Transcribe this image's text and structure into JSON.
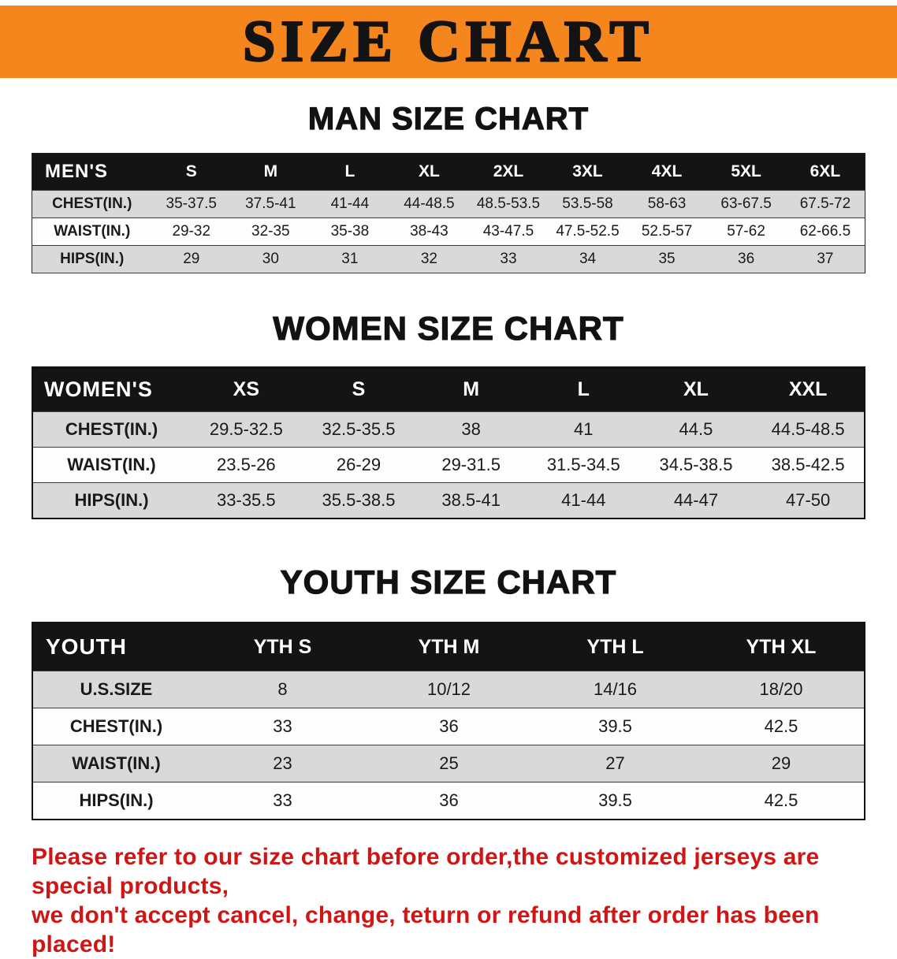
{
  "banner": {
    "title": "SIZE CHART"
  },
  "sections": {
    "men": {
      "heading": "MAN SIZE CHART",
      "table": {
        "header": [
          "MEN'S",
          "S",
          "M",
          "L",
          "XL",
          "2XL",
          "3XL",
          "4XL",
          "5XL",
          "6XL"
        ],
        "rows": [
          [
            "CHEST(IN.)",
            "35-37.5",
            "37.5-41",
            "41-44",
            "44-48.5",
            "48.5-53.5",
            "53.5-58",
            "58-63",
            "63-67.5",
            "67.5-72"
          ],
          [
            "WAIST(IN.)",
            "29-32",
            "32-35",
            "35-38",
            "38-43",
            "43-47.5",
            "47.5-52.5",
            "52.5-57",
            "57-62",
            "62-66.5"
          ],
          [
            "HIPS(IN.)",
            "29",
            "30",
            "31",
            "32",
            "33",
            "34",
            "35",
            "36",
            "37"
          ]
        ]
      }
    },
    "women": {
      "heading": "WOMEN SIZE CHART",
      "table": {
        "header": [
          "WOMEN'S",
          "XS",
          "S",
          "M",
          "L",
          "XL",
          "XXL"
        ],
        "rows": [
          [
            "CHEST(IN.)",
            "29.5-32.5",
            "32.5-35.5",
            "38",
            "41",
            "44.5",
            "44.5-48.5"
          ],
          [
            "WAIST(IN.)",
            "23.5-26",
            "26-29",
            "29-31.5",
            "31.5-34.5",
            "34.5-38.5",
            "38.5-42.5"
          ],
          [
            "HIPS(IN.)",
            "33-35.5",
            "35.5-38.5",
            "38.5-41",
            "41-44",
            "44-47",
            "47-50"
          ]
        ]
      }
    },
    "youth": {
      "heading": "YOUTH SIZE CHART",
      "table": {
        "header": [
          "YOUTH",
          "YTH S",
          "YTH M",
          "YTH L",
          "YTH XL"
        ],
        "rows": [
          [
            "U.S.SIZE",
            "8",
            "10/12",
            "14/16",
            "18/20"
          ],
          [
            "CHEST(IN.)",
            "33",
            "36",
            "39.5",
            "42.5"
          ],
          [
            "WAIST(IN.)",
            "23",
            "25",
            "27",
            "29"
          ],
          [
            "HIPS(IN.)",
            "33",
            "36",
            "39.5",
            "42.5"
          ]
        ]
      }
    }
  },
  "disclaimer": {
    "line1": "Please refer to our size chart before order,the customized jerseys are special products,",
    "line2": "we don't accept cancel, change, teturn or refund after order has been placed!"
  },
  "colors": {
    "banner_orange": "#f5861d",
    "header_black": "#141414",
    "row_gray": "#d9d9d9",
    "row_white": "#fdfdfd",
    "disclaimer_red": "#d01515",
    "text_black": "#131313"
  }
}
